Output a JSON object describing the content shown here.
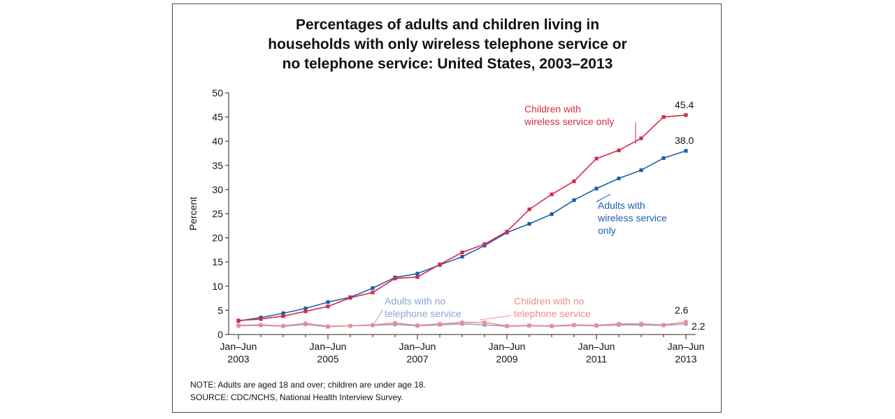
{
  "chart_data": {
    "type": "line",
    "title_lines": [
      "Percentages of adults and children living in",
      "households with only wireless telephone service or",
      "no telephone service: United States, 2003–2013"
    ],
    "ylabel": "Percent",
    "xlabel": "",
    "ylim": [
      0,
      50
    ],
    "yticks": [
      0,
      5,
      10,
      15,
      20,
      25,
      30,
      35,
      40,
      45,
      50
    ],
    "grid": false,
    "legend": "inline annotations",
    "x_periods": 21,
    "x_tick_labels": [
      {
        "index": 0,
        "line1": "Jan–Jun",
        "line2": "2003"
      },
      {
        "index": 4,
        "line1": "Jan–Jun",
        "line2": "2005"
      },
      {
        "index": 8,
        "line1": "Jan–Jun",
        "line2": "2007"
      },
      {
        "index": 12,
        "line1": "Jan–Jun",
        "line2": "2009"
      },
      {
        "index": 16,
        "line1": "Jan–Jun",
        "line2": "2011"
      },
      {
        "index": 20,
        "line1": "Jan–Jun",
        "line2": "2013"
      }
    ],
    "series": [
      {
        "key": "adults_wireless",
        "name": "Adults with wireless service only",
        "label_lines": [
          "Adults with",
          "wireless service",
          "only"
        ],
        "color": "#1f5fad",
        "values": [
          2.8,
          3.5,
          4.4,
          5.4,
          6.7,
          7.7,
          9.6,
          11.8,
          12.6,
          14.4,
          16.1,
          18.4,
          21.1,
          22.9,
          24.9,
          27.8,
          30.2,
          32.3,
          34.0,
          36.5,
          38.0
        ],
        "end_label": "38.0"
      },
      {
        "key": "children_wireless",
        "name": "Children with wireless service only",
        "label_lines": [
          "Children with",
          "wireless service only"
        ],
        "color": "#d42a4a",
        "values": [
          2.9,
          3.2,
          3.8,
          4.8,
          5.8,
          7.6,
          8.7,
          11.6,
          11.9,
          14.5,
          17.0,
          18.7,
          21.3,
          25.9,
          29.0,
          31.7,
          36.4,
          38.1,
          40.6,
          45.0,
          45.4
        ],
        "end_label": "45.4"
      },
      {
        "key": "adults_none",
        "name": "Adults with no telephone service",
        "label_lines": [
          "Adults with no",
          "telephone service"
        ],
        "color": "#8fa2d8",
        "values": [
          1.8,
          1.9,
          1.7,
          2.1,
          1.6,
          1.8,
          1.9,
          2.1,
          1.8,
          2.0,
          2.2,
          2.0,
          1.7,
          1.8,
          1.7,
          1.9,
          1.8,
          2.0,
          2.0,
          1.9,
          2.2
        ],
        "end_label": "2.2"
      },
      {
        "key": "children_none",
        "name": "Children with no telephone service",
        "label_lines": [
          "Children with no",
          "telephone service"
        ],
        "color": "#ee8c8c",
        "values": [
          1.9,
          2.0,
          1.8,
          2.3,
          1.7,
          1.8,
          2.0,
          2.4,
          1.9,
          2.2,
          2.5,
          2.5,
          1.8,
          1.9,
          1.8,
          2.0,
          1.9,
          2.2,
          2.2,
          2.0,
          2.6
        ],
        "end_label": "2.6"
      }
    ]
  },
  "notes": {
    "note": "NOTE: Adults are aged 18 and over; children are under age 18.",
    "source": "SOURCE: CDC/NCHS, National Health Interview Survey."
  }
}
